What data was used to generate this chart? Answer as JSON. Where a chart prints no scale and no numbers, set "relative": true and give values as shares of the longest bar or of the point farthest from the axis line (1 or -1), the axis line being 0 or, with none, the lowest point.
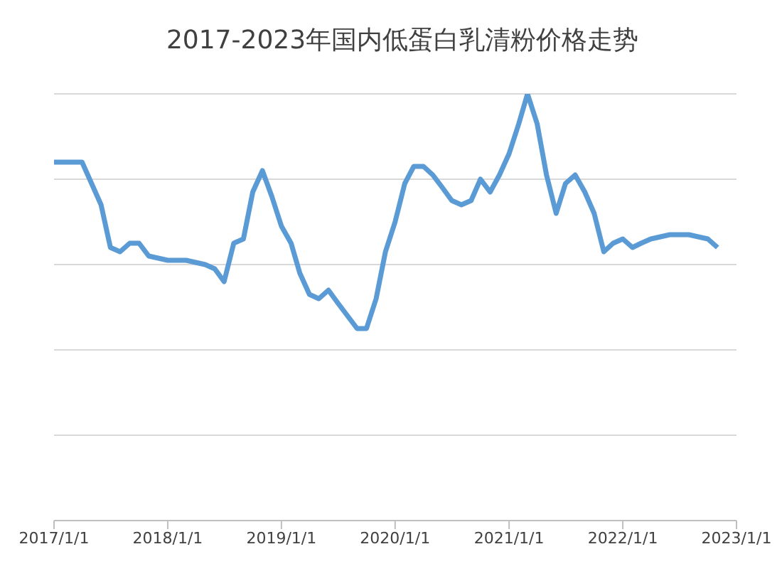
{
  "chart_data": {
    "type": "line",
    "title": "2017-2023年国内低蛋白乳清粉价格走势",
    "relative": true,
    "grid": "y",
    "legend": false,
    "marker": "none",
    "line_style": "solid",
    "x": [
      "2017-01",
      "2017-04",
      "2017-06",
      "2017-07",
      "2017-08",
      "2017-09",
      "2017-10",
      "2017-11",
      "2018-01",
      "2018-03",
      "2018-05",
      "2018-06",
      "2018-07",
      "2018-08",
      "2018-09",
      "2018-10",
      "2018-11",
      "2018-12",
      "2019-01",
      "2019-02",
      "2019-03",
      "2019-04",
      "2019-05",
      "2019-06",
      "2019-07",
      "2019-08",
      "2019-09",
      "2019-10",
      "2019-11",
      "2019-12",
      "2020-01",
      "2020-02",
      "2020-03",
      "2020-04",
      "2020-05",
      "2020-06",
      "2020-07",
      "2020-08",
      "2020-09",
      "2020-10",
      "2020-11",
      "2020-12",
      "2021-01",
      "2021-02",
      "2021-03",
      "2021-04",
      "2021-05",
      "2021-06",
      "2021-07",
      "2021-08",
      "2021-09",
      "2021-10",
      "2021-11",
      "2021-12",
      "2022-01",
      "2022-02",
      "2022-03",
      "2022-04",
      "2022-06",
      "2022-08",
      "2022-10",
      "2022-11"
    ],
    "xlim": [
      "2017-01",
      "2023-01"
    ],
    "xticks": [
      {
        "value": "2017-01-01",
        "label": "2017/1/1"
      },
      {
        "value": "2018-01-01",
        "label": "2018/1/1"
      },
      {
        "value": "2019-01-01",
        "label": "2019/1/1"
      },
      {
        "value": "2020-01-01",
        "label": "2020/1/1"
      },
      {
        "value": "2021-01-01",
        "label": "2021/1/1"
      },
      {
        "value": "2022-01-01",
        "label": "2022/1/1"
      },
      {
        "value": "2023-01-01",
        "label": "2023/1/1"
      }
    ],
    "series": [
      {
        "color": "#5b9bd5",
        "values": [
          0.84,
          0.84,
          0.74,
          0.64,
          0.63,
          0.65,
          0.65,
          0.62,
          0.61,
          0.61,
          0.6,
          0.59,
          0.56,
          0.65,
          0.66,
          0.77,
          0.82,
          0.76,
          0.69,
          0.65,
          0.58,
          0.53,
          0.52,
          0.54,
          0.51,
          0.48,
          0.45,
          0.45,
          0.52,
          0.63,
          0.7,
          0.79,
          0.83,
          0.83,
          0.81,
          0.78,
          0.75,
          0.74,
          0.75,
          0.8,
          0.77,
          0.81,
          0.86,
          0.93,
          1,
          0.93,
          0.81,
          0.72,
          0.79,
          0.81,
          0.77,
          0.72,
          0.63,
          0.65,
          0.66,
          0.64,
          0.65,
          0.66,
          0.67,
          0.67,
          0.66,
          0.64
        ]
      }
    ]
  }
}
